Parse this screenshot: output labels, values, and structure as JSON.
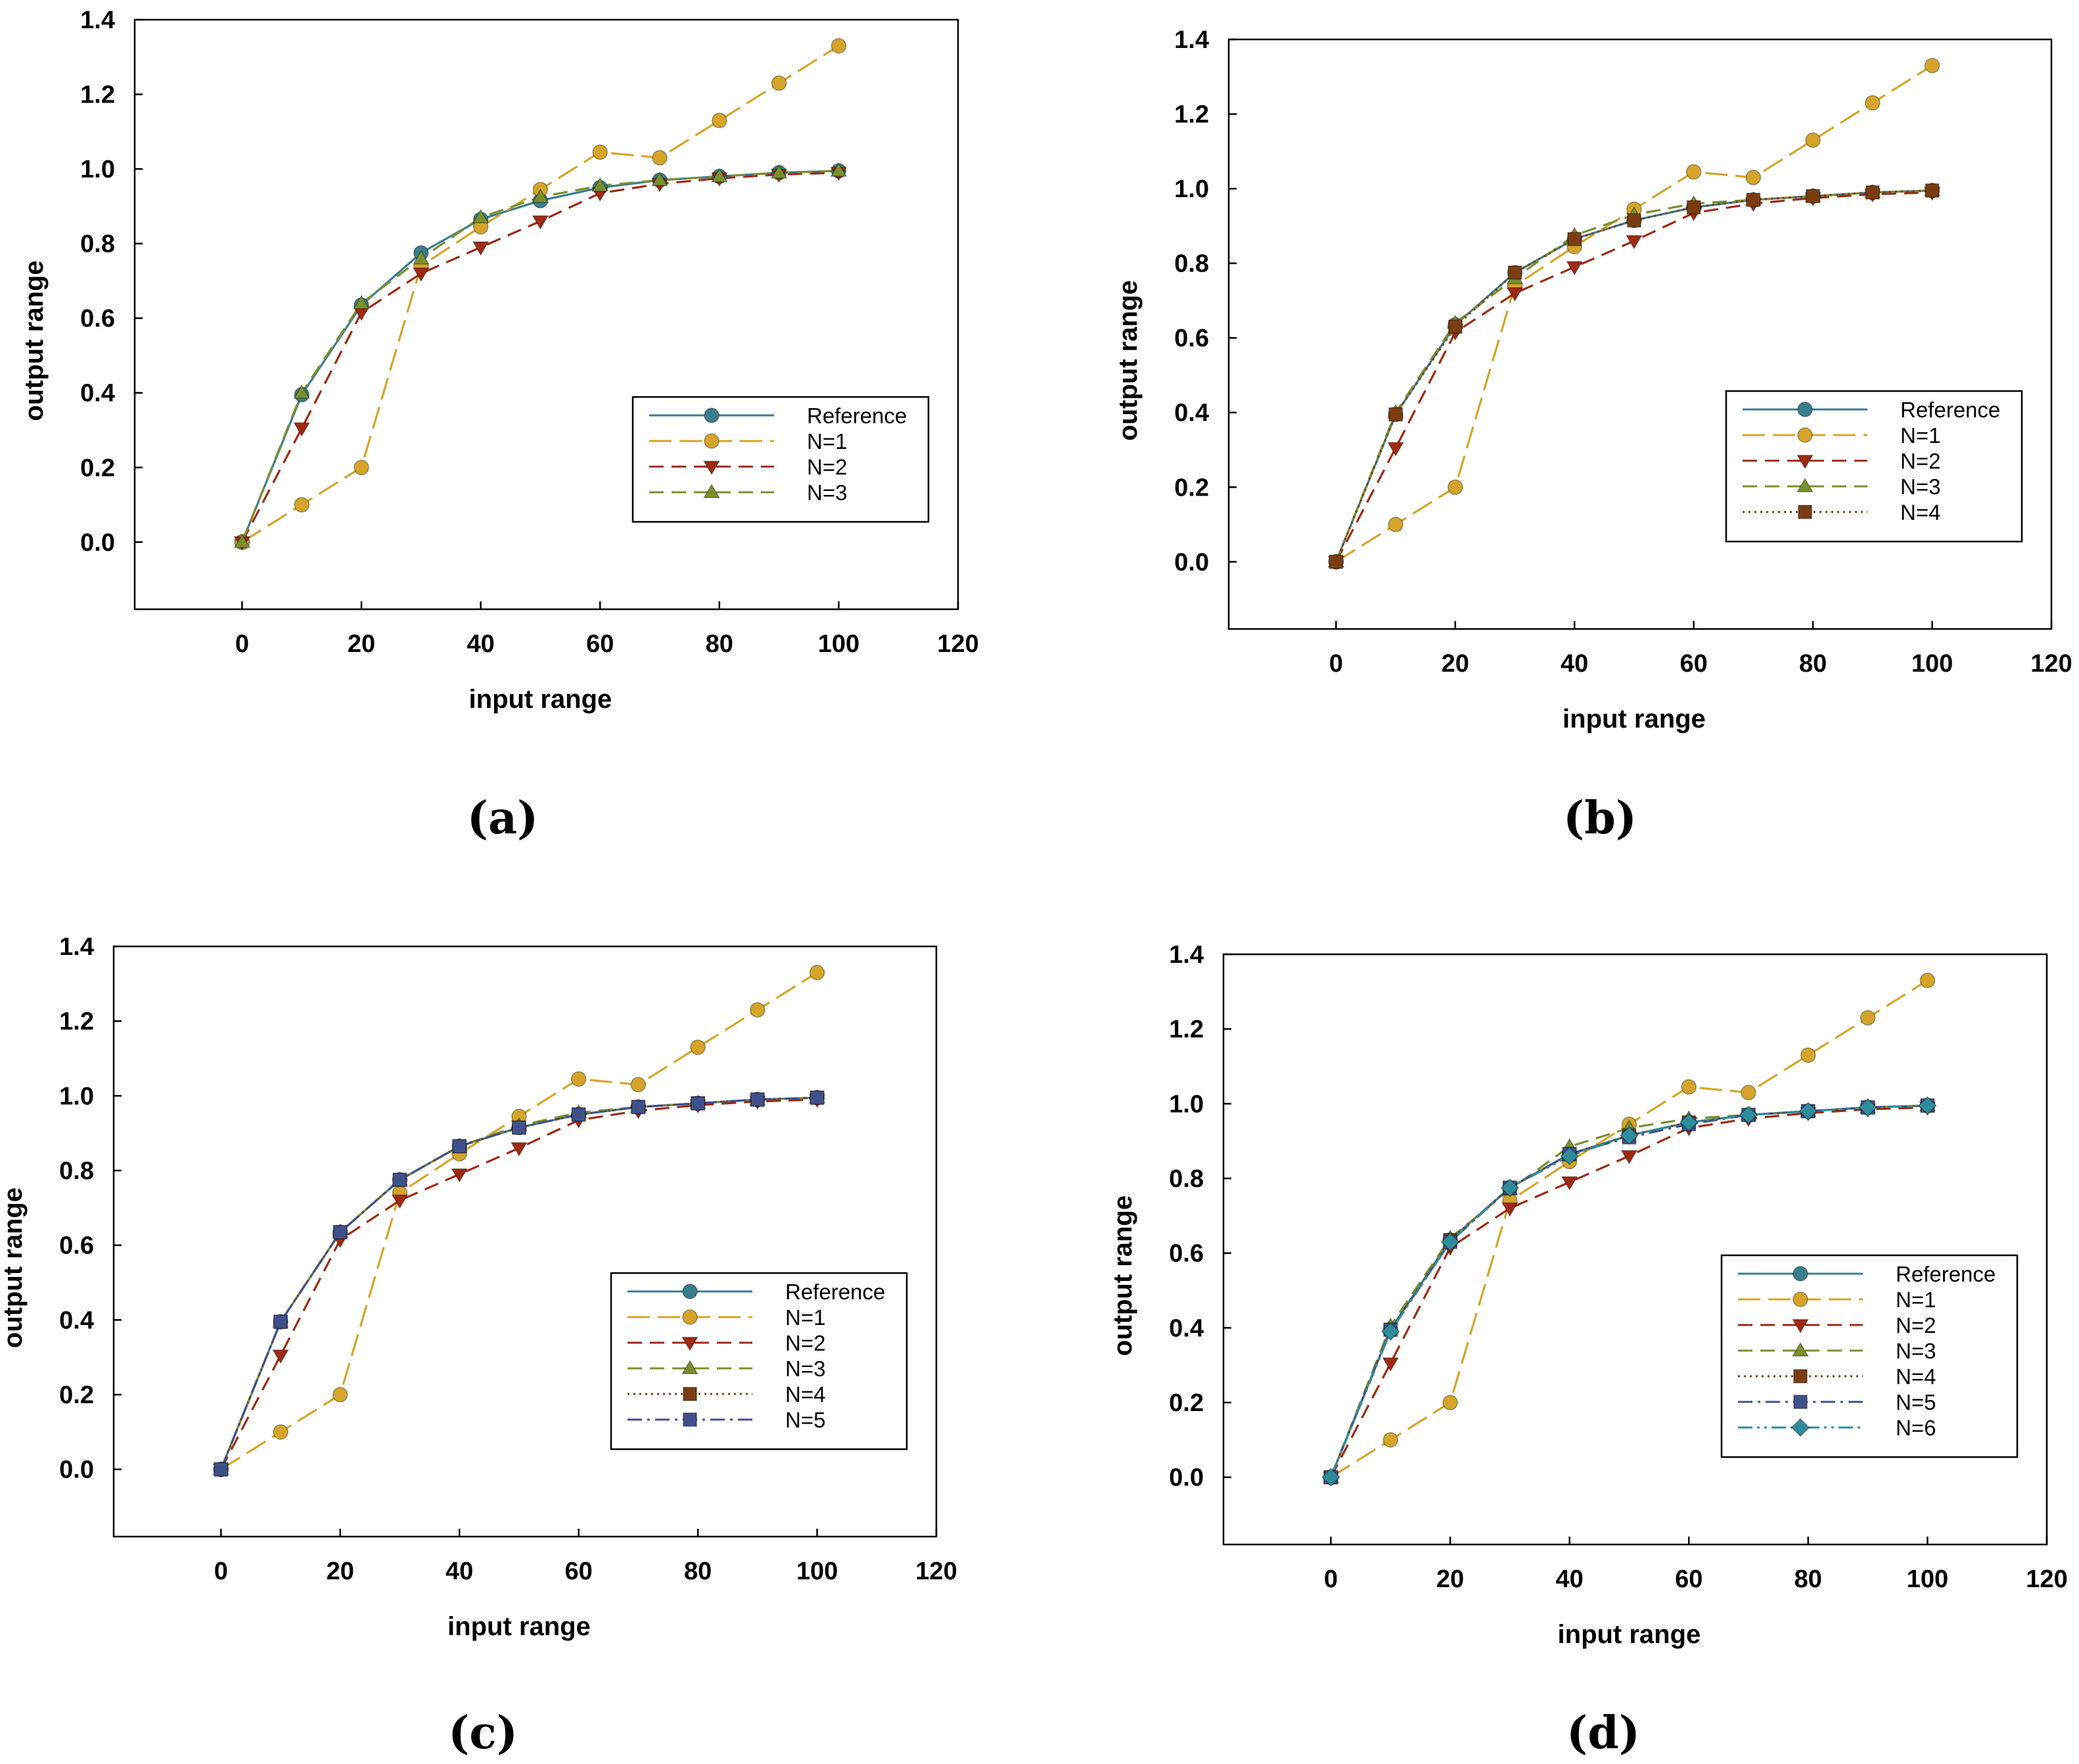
{
  "figure": {
    "panels": [
      {
        "caption": "(a)"
      },
      {
        "caption": "(b)"
      },
      {
        "caption": "(c)"
      },
      {
        "caption": "(d)"
      }
    ]
  },
  "series_styles": {
    "Reference": {
      "color": "#3a7d8c",
      "marker": "circle",
      "dash": "solid"
    },
    "N=1": {
      "color": "#d4a52a",
      "marker": "circle",
      "dash": "longdash"
    },
    "N=2": {
      "color": "#9e2a14",
      "marker": "triangle-down",
      "dash": "dash"
    },
    "N=3": {
      "color": "#7a8f2e",
      "marker": "triangle-up",
      "dash": "dash"
    },
    "N=4": {
      "color": "#7a3d12",
      "marker": "square",
      "dash": "dot"
    },
    "N=5": {
      "color": "#40508a",
      "marker": "square",
      "dash": "dashdot"
    },
    "N=6": {
      "color": "#2f8c9a",
      "marker": "diamond",
      "dash": "dashdotdot"
    }
  },
  "chart_data": [
    {
      "type": "line",
      "title": "",
      "xlabel": "input range",
      "ylabel": "output range",
      "xlim": [
        -18,
        120
      ],
      "ylim": [
        -0.18,
        1.4
      ],
      "xticks": [
        0,
        20,
        40,
        60,
        80,
        100,
        120
      ],
      "yticks": [
        0.0,
        0.2,
        0.4,
        0.6,
        0.8,
        1.0,
        1.2,
        1.4
      ],
      "ytick_labels": [
        "0.0",
        "0.2",
        "0.4",
        "0.6",
        "0.8",
        "1.0",
        "1.2",
        "1.4"
      ],
      "legend_position": "lower-right",
      "x": [
        0,
        10,
        20,
        30,
        40,
        50,
        60,
        70,
        80,
        90,
        100
      ],
      "series": [
        {
          "name": "Reference",
          "values": [
            0,
            0.395,
            0.635,
            0.775,
            0.865,
            0.915,
            0.95,
            0.97,
            0.98,
            0.99,
            0.995
          ]
        },
        {
          "name": "N=1",
          "values": [
            0,
            0.1,
            0.2,
            0.74,
            0.845,
            0.945,
            1.045,
            1.03,
            1.13,
            1.23,
            1.33
          ]
        },
        {
          "name": "N=2",
          "values": [
            0,
            0.305,
            0.615,
            0.72,
            0.79,
            0.86,
            0.935,
            0.96,
            0.975,
            0.985,
            0.99
          ]
        },
        {
          "name": "N=3",
          "values": [
            0,
            0.4,
            0.64,
            0.76,
            0.87,
            0.925,
            0.955,
            0.97,
            0.98,
            0.99,
            0.995
          ]
        }
      ]
    },
    {
      "type": "line",
      "title": "",
      "xlabel": "input range",
      "ylabel": "output range",
      "xlim": [
        -18,
        120
      ],
      "ylim": [
        -0.18,
        1.4
      ],
      "xticks": [
        0,
        20,
        40,
        60,
        80,
        100,
        120
      ],
      "yticks": [
        0.0,
        0.2,
        0.4,
        0.6,
        0.8,
        1.0,
        1.2,
        1.4
      ],
      "ytick_labels": [
        "0.0",
        "0.2",
        "0.4",
        "0.6",
        "0.8",
        "1.0",
        "1.2",
        "1.4"
      ],
      "legend_position": "lower-right",
      "x": [
        0,
        10,
        20,
        30,
        40,
        50,
        60,
        70,
        80,
        90,
        100
      ],
      "series": [
        {
          "name": "Reference",
          "values": [
            0,
            0.395,
            0.635,
            0.775,
            0.865,
            0.915,
            0.95,
            0.97,
            0.98,
            0.99,
            0.995
          ]
        },
        {
          "name": "N=1",
          "values": [
            0,
            0.1,
            0.2,
            0.74,
            0.845,
            0.945,
            1.045,
            1.03,
            1.13,
            1.23,
            1.33
          ]
        },
        {
          "name": "N=2",
          "values": [
            0,
            0.305,
            0.615,
            0.72,
            0.79,
            0.86,
            0.935,
            0.96,
            0.975,
            0.985,
            0.99
          ]
        },
        {
          "name": "N=3",
          "values": [
            0,
            0.4,
            0.64,
            0.76,
            0.875,
            0.93,
            0.96,
            0.97,
            0.98,
            0.99,
            0.995
          ]
        },
        {
          "name": "N=4",
          "values": [
            0,
            0.395,
            0.63,
            0.775,
            0.865,
            0.915,
            0.95,
            0.97,
            0.98,
            0.99,
            0.995
          ]
        }
      ]
    },
    {
      "type": "line",
      "title": "",
      "xlabel": "input range",
      "ylabel": "output range",
      "xlim": [
        -18,
        120
      ],
      "ylim": [
        -0.18,
        1.4
      ],
      "xticks": [
        0,
        20,
        40,
        60,
        80,
        100,
        120
      ],
      "yticks": [
        0.0,
        0.2,
        0.4,
        0.6,
        0.8,
        1.0,
        1.2,
        1.4
      ],
      "ytick_labels": [
        "0.0",
        "0.2",
        "0.4",
        "0.6",
        "0.8",
        "1.0",
        "1.2",
        "1.4"
      ],
      "legend_position": "lower-right",
      "x": [
        0,
        10,
        20,
        30,
        40,
        50,
        60,
        70,
        80,
        90,
        100
      ],
      "series": [
        {
          "name": "Reference",
          "values": [
            0,
            0.395,
            0.635,
            0.775,
            0.865,
            0.915,
            0.95,
            0.97,
            0.98,
            0.99,
            0.995
          ]
        },
        {
          "name": "N=1",
          "values": [
            0,
            0.1,
            0.2,
            0.74,
            0.845,
            0.945,
            1.045,
            1.03,
            1.13,
            1.23,
            1.33
          ]
        },
        {
          "name": "N=2",
          "values": [
            0,
            0.305,
            0.615,
            0.72,
            0.79,
            0.86,
            0.935,
            0.96,
            0.975,
            0.985,
            0.99
          ]
        },
        {
          "name": "N=3",
          "values": [
            0,
            0.395,
            0.635,
            0.775,
            0.865,
            0.92,
            0.955,
            0.97,
            0.98,
            0.99,
            0.995
          ]
        },
        {
          "name": "N=4",
          "values": [
            0,
            0.395,
            0.635,
            0.775,
            0.865,
            0.915,
            0.95,
            0.97,
            0.98,
            0.99,
            0.995
          ]
        },
        {
          "name": "N=5",
          "values": [
            0,
            0.395,
            0.635,
            0.775,
            0.865,
            0.915,
            0.95,
            0.97,
            0.98,
            0.99,
            0.995
          ]
        }
      ]
    },
    {
      "type": "line",
      "title": "",
      "xlabel": "input range",
      "ylabel": "output range",
      "xlim": [
        -18,
        120
      ],
      "ylim": [
        -0.18,
        1.4
      ],
      "xticks": [
        0,
        20,
        40,
        60,
        80,
        100,
        120
      ],
      "yticks": [
        0.0,
        0.2,
        0.4,
        0.6,
        0.8,
        1.0,
        1.2,
        1.4
      ],
      "ytick_labels": [
        "0.0",
        "0.2",
        "0.4",
        "0.6",
        "0.8",
        "1.0",
        "1.2",
        "1.4"
      ],
      "legend_position": "lower-right",
      "x": [
        0,
        10,
        20,
        30,
        40,
        50,
        60,
        70,
        80,
        90,
        100
      ],
      "series": [
        {
          "name": "Reference",
          "values": [
            0,
            0.395,
            0.635,
            0.775,
            0.865,
            0.915,
            0.95,
            0.97,
            0.98,
            0.99,
            0.995
          ]
        },
        {
          "name": "N=1",
          "values": [
            0,
            0.1,
            0.2,
            0.74,
            0.845,
            0.945,
            1.045,
            1.03,
            1.13,
            1.23,
            1.33
          ]
        },
        {
          "name": "N=2",
          "values": [
            0,
            0.305,
            0.615,
            0.72,
            0.79,
            0.86,
            0.935,
            0.96,
            0.975,
            0.985,
            0.99
          ]
        },
        {
          "name": "N=3",
          "values": [
            0,
            0.405,
            0.64,
            0.77,
            0.885,
            0.935,
            0.96,
            0.97,
            0.98,
            0.99,
            0.995
          ]
        },
        {
          "name": "N=4",
          "values": [
            0,
            0.395,
            0.635,
            0.775,
            0.865,
            0.915,
            0.95,
            0.97,
            0.98,
            0.99,
            0.995
          ]
        },
        {
          "name": "N=5",
          "values": [
            0,
            0.395,
            0.63,
            0.775,
            0.865,
            0.91,
            0.945,
            0.97,
            0.98,
            0.99,
            0.995
          ]
        },
        {
          "name": "N=6",
          "values": [
            0,
            0.39,
            0.63,
            0.775,
            0.86,
            0.915,
            0.95,
            0.97,
            0.98,
            0.99,
            0.995
          ]
        }
      ]
    }
  ]
}
